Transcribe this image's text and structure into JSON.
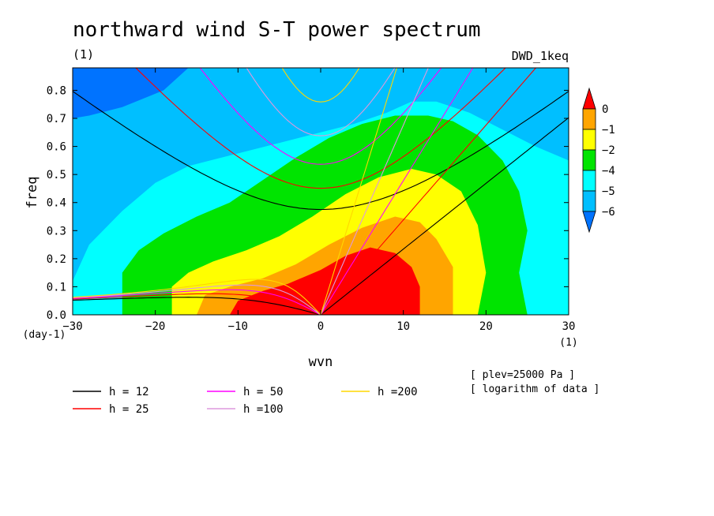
{
  "header": {
    "title": "northward wind S-T power spectrum",
    "units_left": "(1)",
    "experiment": "DWD_1keq"
  },
  "axes": {
    "xlabel": "wvn",
    "ylabel": "freq",
    "x_unit": "(1)",
    "y_unit": "(day-1)"
  },
  "notes": {
    "plev": "[ plev=25000 Pa ]",
    "log": "[ logarithm of data ]"
  },
  "colorbar": {
    "ticks": [
      "0",
      "−1",
      "−2",
      "−4",
      "−5",
      "−6"
    ],
    "colors": [
      "#ff0000",
      "#ffa500",
      "#ffff00",
      "#00e400",
      "#00ffff",
      "#00bfff",
      "#0073ff",
      "#1e40ff"
    ]
  },
  "legend": [
    {
      "label": "h = 12",
      "color": "#000000"
    },
    {
      "label": "h = 25",
      "color": "#ff0000"
    },
    {
      "label": "h = 50",
      "color": "#ff00ff"
    },
    {
      "label": "h =100",
      "color": "#dd99dd"
    },
    {
      "label": "h =200",
      "color": "#ffd700"
    }
  ],
  "chart_data": {
    "type": "heatmap",
    "title": "northward wind S-T power spectrum",
    "xlabel": "wvn",
    "ylabel": "freq",
    "xlim": [
      -30,
      30
    ],
    "ylim": [
      0.0,
      0.88
    ],
    "x_ticks": [
      "−30",
      "−20",
      "−10",
      "0",
      "10",
      "20",
      "30"
    ],
    "y_ticks": [
      "0.0",
      "0.1",
      "0.2",
      "0.3",
      "0.4",
      "0.5",
      "0.6",
      "0.7",
      "0.8"
    ],
    "contour_levels": [
      0,
      -1,
      -2,
      -4,
      -5,
      -6
    ],
    "peak": {
      "wvn": 5,
      "freq": 0.12
    },
    "dispersion_curves": [
      {
        "name": "h = 12",
        "equivalent_depth": 12
      },
      {
        "name": "h = 25",
        "equivalent_depth": 25
      },
      {
        "name": "h = 50",
        "equivalent_depth": 50
      },
      {
        "name": "h =100",
        "equivalent_depth": 100
      },
      {
        "name": "h =200",
        "equivalent_depth": 200
      }
    ]
  }
}
